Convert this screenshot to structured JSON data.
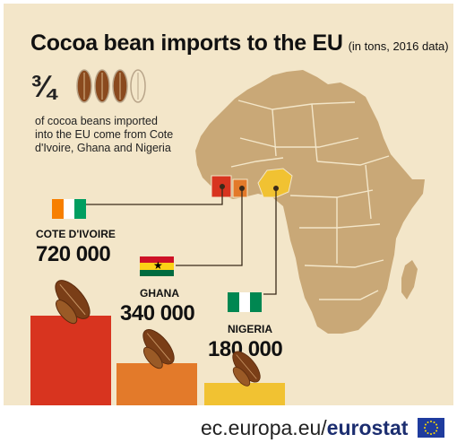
{
  "header": {
    "title": "Cocoa bean imports to the EU",
    "subtitle": "(in tons, 2016 data)"
  },
  "fact": {
    "fraction": "3/4",
    "fraction_display": "¾",
    "beans_filled": 3,
    "beans_total": 4,
    "text": "of cocoa beans imported into the EU come from Cote d'Ivoire, Ghana and Nigeria"
  },
  "chart_data": {
    "type": "bar",
    "title": "Cocoa bean imports to the EU",
    "subtitle": "(in tons, 2016 data)",
    "categories": [
      "COTE D'IVOIRE",
      "GHANA",
      "NIGERIA"
    ],
    "values": [
      720000,
      340000,
      180000
    ],
    "value_labels": [
      "720 000",
      "340 000",
      "180 000"
    ],
    "colors": [
      "#d8341f",
      "#e37a2a",
      "#f1c232"
    ],
    "xlabel": "",
    "ylabel": ""
  },
  "colors": {
    "background": "#f3e6c9",
    "map_land": "#c9a877",
    "map_border": "#f3e6c9",
    "cote_divoire": "#d8341f",
    "ghana": "#e37a2a",
    "nigeria": "#f1c232",
    "bean": "#8a4a1e",
    "bean_outline": "#b9a58a",
    "brand": "#1c2e70"
  },
  "flags": {
    "cote_divoire": [
      "#f77f00",
      "#ffffff",
      "#009e60"
    ],
    "ghana": [
      "#ce1126",
      "#fcd116",
      "#006b3f"
    ],
    "nigeria": [
      "#008751",
      "#ffffff",
      "#008751"
    ]
  },
  "footer": {
    "domain": "ec.europa.eu/",
    "brand": "eurostat"
  }
}
